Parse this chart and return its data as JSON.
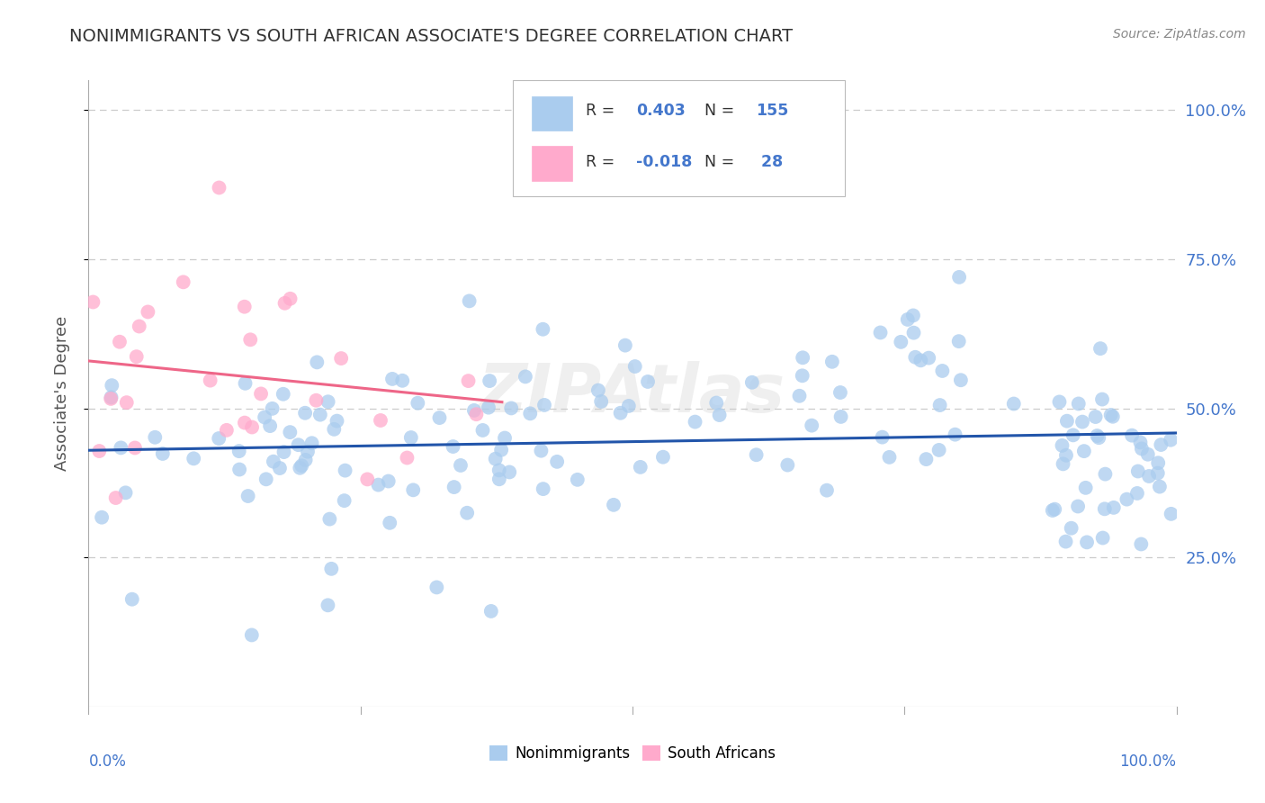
{
  "title": "NONIMMIGRANTS VS SOUTH AFRICAN ASSOCIATE'S DEGREE CORRELATION CHART",
  "source": "Source: ZipAtlas.com",
  "ylabel": "Associate's Degree",
  "y_tick_vals": [
    0.25,
    0.5,
    0.75,
    1.0
  ],
  "blue_line_color": "#2255aa",
  "pink_line_color": "#ee6688",
  "blue_scatter_color": "#aaccee",
  "pink_scatter_color": "#ffaacc",
  "background_color": "#ffffff",
  "grid_color": "#cccccc",
  "title_color": "#333333",
  "axis_color": "#aaaaaa",
  "tick_label_color": "#4477cc",
  "watermark_color": "#dddddd",
  "xlim": [
    0.0,
    1.0
  ],
  "ylim": [
    0.0,
    1.05
  ]
}
